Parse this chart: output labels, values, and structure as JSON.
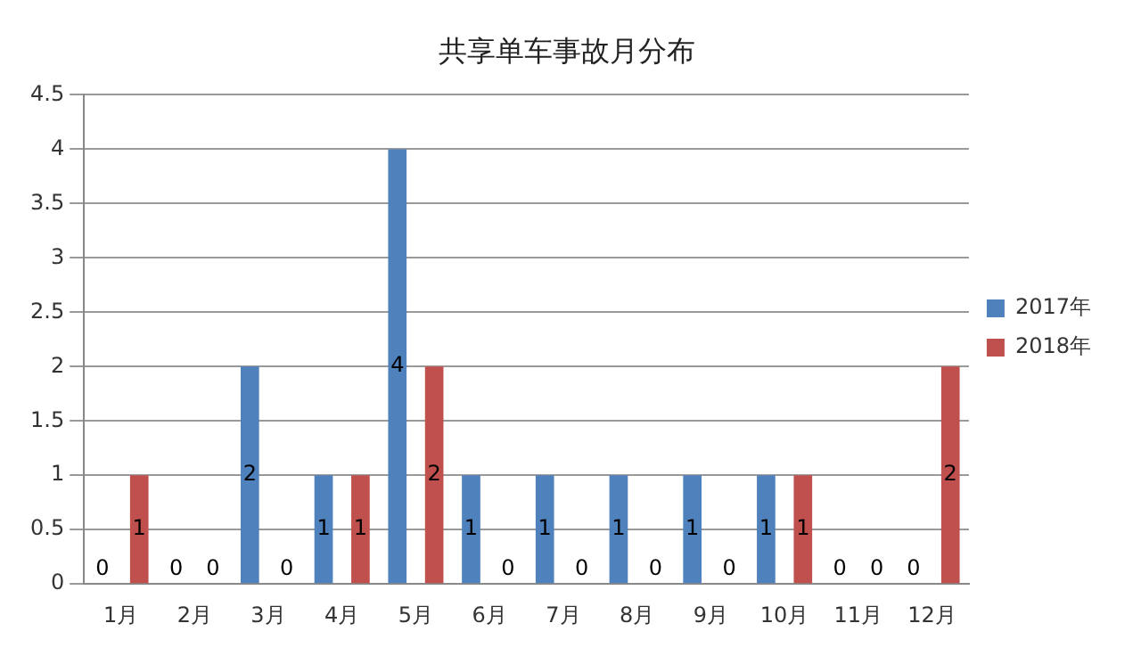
{
  "chart_data": {
    "type": "bar",
    "title": "共享单车事故月分布",
    "categories": [
      "1月",
      "2月",
      "3月",
      "4月",
      "5月",
      "6月",
      "7月",
      "8月",
      "9月",
      "10月",
      "11月",
      "12月"
    ],
    "series": [
      {
        "name": "2017年",
        "color": "#4f81bd",
        "values": [
          0,
          0,
          2,
          1,
          4,
          1,
          1,
          1,
          1,
          1,
          0,
          0
        ]
      },
      {
        "name": "2018年",
        "color": "#c0504d",
        "values": [
          1,
          0,
          0,
          1,
          2,
          0,
          0,
          0,
          0,
          1,
          0,
          2
        ]
      }
    ],
    "ylim": [
      0,
      4.5
    ],
    "yticks": [
      0,
      0.5,
      1,
      1.5,
      2,
      2.5,
      3,
      3.5,
      4,
      4.5
    ],
    "grid": "y",
    "legend": "right",
    "data_labels": true
  }
}
